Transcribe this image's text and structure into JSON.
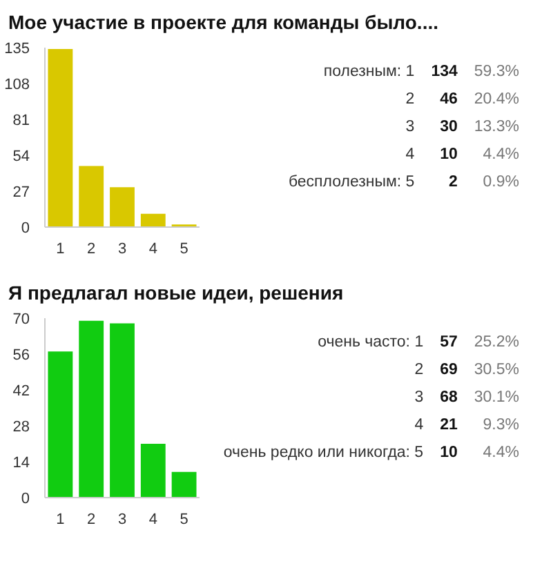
{
  "chart_data": [
    {
      "type": "bar",
      "title": "Мое участие в проекте для команды было....",
      "categories": [
        "1",
        "2",
        "3",
        "4",
        "5"
      ],
      "values": [
        134,
        46,
        30,
        10,
        2
      ],
      "color": "#d9c800",
      "ylim": [
        0,
        135
      ],
      "yticks": [
        0,
        27,
        54,
        81,
        108,
        135
      ],
      "grid": false,
      "annotations": [
        "полезным: 1",
        "134",
        "59.3%",
        "2",
        "46",
        "20.4%",
        "3",
        "30",
        "13.3%",
        "4",
        "10",
        "4.4%",
        "бесплолезным: 5",
        "2",
        "0.9%"
      ]
    },
    {
      "type": "bar",
      "title": "Я предлагал новые идеи, решения",
      "categories": [
        "1",
        "2",
        "3",
        "4",
        "5"
      ],
      "values": [
        57,
        69,
        68,
        21,
        10
      ],
      "color": "#11cc11",
      "ylim": [
        0,
        70
      ],
      "yticks": [
        0,
        14,
        28,
        42,
        56,
        70
      ],
      "grid": false,
      "annotations": [
        "очень часто: 1",
        "57",
        "25.2%",
        "2",
        "69",
        "30.5%",
        "3",
        "68",
        "30.1%",
        "4",
        "21",
        "9.3%",
        "очень редко или никогда: 5",
        "10",
        "4.4%"
      ]
    }
  ]
}
